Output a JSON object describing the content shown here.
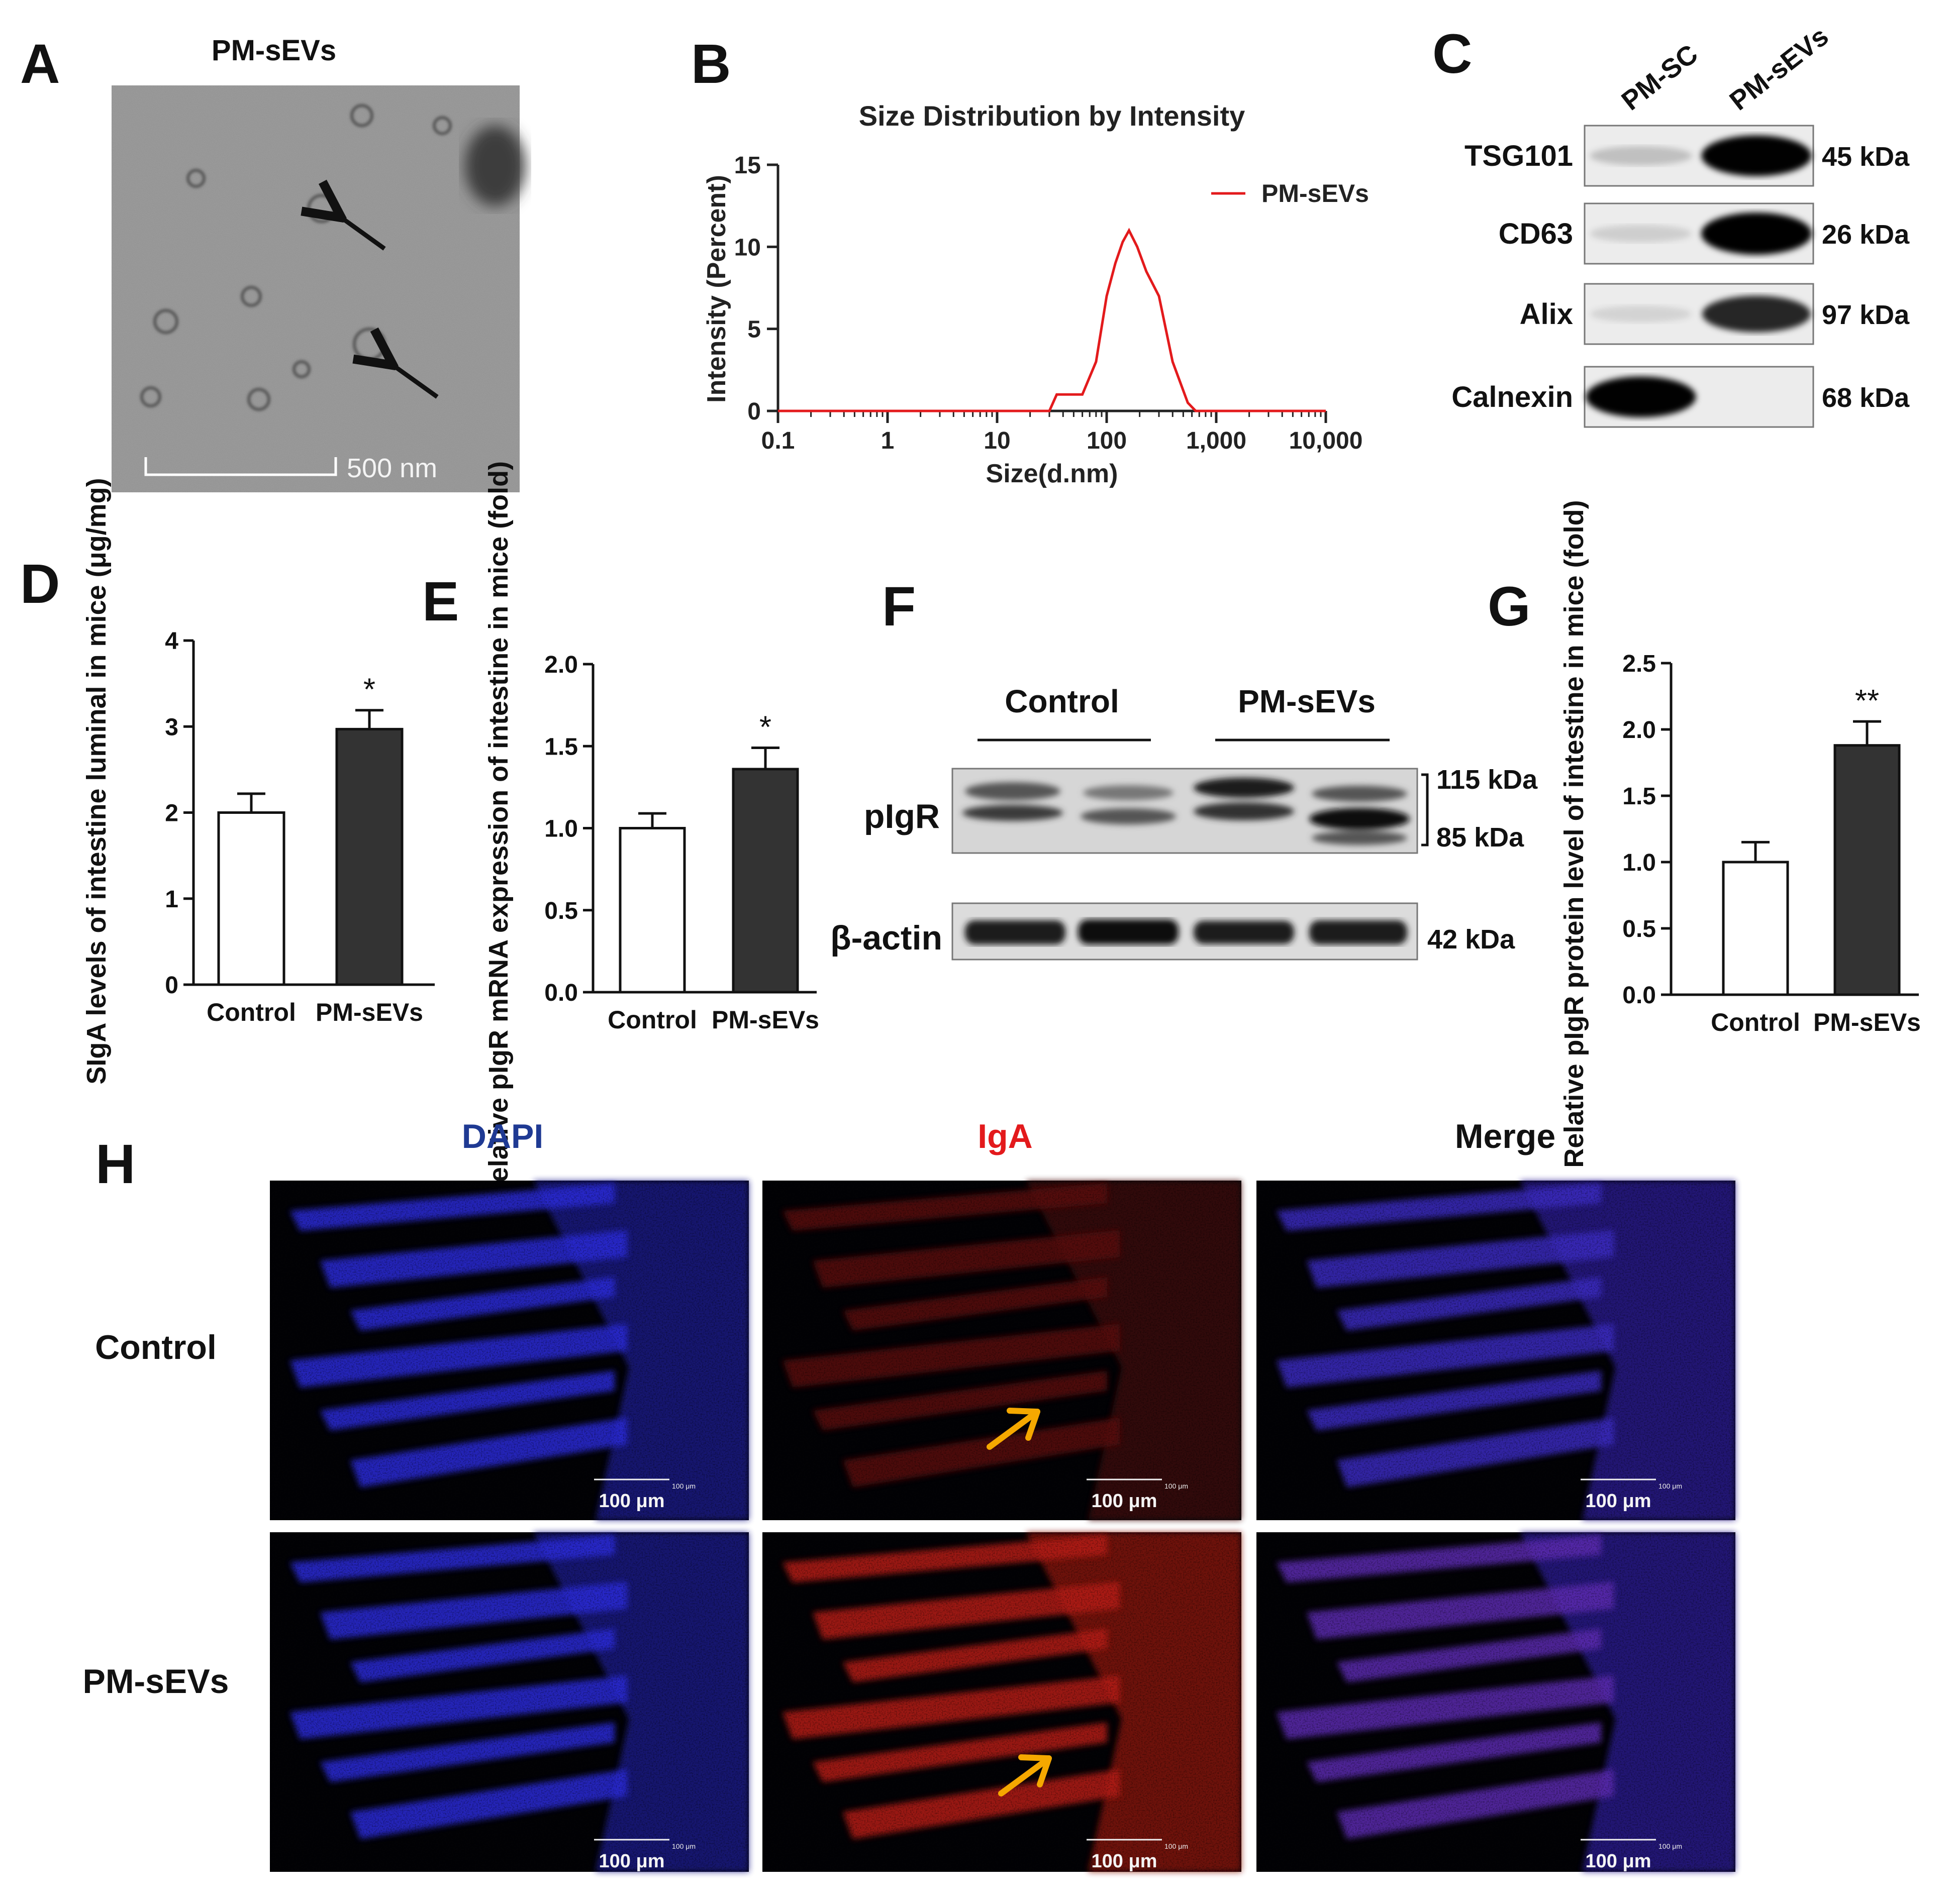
{
  "panel_letters": [
    "A",
    "B",
    "C",
    "D",
    "E",
    "F",
    "G",
    "H"
  ],
  "panelA": {
    "title": "PM-sEVs",
    "scale_label": "500 nm"
  },
  "panelB": {
    "chart_data": {
      "type": "line",
      "title": "Size Distribution by Intensity",
      "xlabel": "Size(d.nm)",
      "ylabel": "Intensity (Percent)",
      "xscale": "log",
      "xlim": [
        0.1,
        10000
      ],
      "ylim": [
        0,
        15
      ],
      "xticks": [
        0.1,
        1,
        10,
        100,
        1000,
        10000
      ],
      "xtick_labels": [
        "0.1",
        "1",
        "10",
        "100",
        "1,000",
        "10,000"
      ],
      "yticks": [
        0,
        5,
        10,
        15
      ],
      "ytick_labels": [
        "0",
        "5",
        "10",
        "15"
      ],
      "legend_position": "top-right",
      "series": [
        {
          "name": "PM-sEVs",
          "color": "#e31a1c",
          "x": [
            0.1,
            30,
            35,
            60,
            80,
            100,
            120,
            140,
            160,
            190,
            230,
            300,
            400,
            550,
            650,
            10000
          ],
          "y": [
            0,
            0,
            1,
            1,
            3,
            7,
            9,
            10.3,
            11,
            10,
            8.5,
            7,
            3,
            0.5,
            0,
            0
          ]
        }
      ]
    }
  },
  "panelC": {
    "lanes": [
      "PM-SC",
      "PM-sEVs"
    ],
    "rows": [
      {
        "label": "TSG101",
        "kda": "45 kDa",
        "left": 0.18,
        "right": 0.95
      },
      {
        "label": "CD63",
        "kda": "26 kDa",
        "left": 0.12,
        "right": 1.0
      },
      {
        "label": "Alix",
        "kda": "97 kDa",
        "left": 0.1,
        "right": 0.8
      },
      {
        "label": "Calnexin",
        "kda": "68 kDa",
        "left": 0.95,
        "right": 0.0
      }
    ]
  },
  "panelD": {
    "chart_data": {
      "type": "bar",
      "categories": [
        "Control",
        "PM-sEVs"
      ],
      "values": [
        2.0,
        2.97
      ],
      "errors": [
        0.22,
        0.22
      ],
      "significance": [
        "",
        "*"
      ],
      "ylabel": "SIgA levels of intestine luminal in mice (μg/mg)",
      "ylim": [
        0,
        4
      ],
      "yticks": [
        0,
        1,
        2,
        3,
        4
      ],
      "ytick_labels": [
        "0",
        "1",
        "2",
        "3",
        "4"
      ],
      "bar_colors": [
        "#ffffff",
        "#333333"
      ]
    }
  },
  "panelE": {
    "chart_data": {
      "type": "bar",
      "categories": [
        "Control",
        "PM-sEVs"
      ],
      "values": [
        1.0,
        1.36
      ],
      "errors": [
        0.09,
        0.13
      ],
      "significance": [
        "",
        "*"
      ],
      "ylabel": "Relative pIgR mRNA expression of intestine in mice (fold)",
      "ylim": [
        0,
        2.0
      ],
      "yticks": [
        0,
        0.5,
        1.0,
        1.5,
        2.0
      ],
      "ytick_labels": [
        "0.0",
        "0.5",
        "1.0",
        "1.5",
        "2.0"
      ],
      "bar_colors": [
        "#ffffff",
        "#333333"
      ]
    }
  },
  "panelF": {
    "groups": [
      "Control",
      "PM-sEVs"
    ],
    "row_labels": [
      "pIgR",
      "β-actin"
    ],
    "kda_labels": [
      "115 kDa",
      "85 kDa",
      "42 kDa"
    ]
  },
  "panelG": {
    "chart_data": {
      "type": "bar",
      "categories": [
        "Control",
        "PM-sEVs"
      ],
      "values": [
        1.0,
        1.88
      ],
      "errors": [
        0.15,
        0.18
      ],
      "significance": [
        "",
        "**"
      ],
      "ylabel": "Relative pIgR protein level of intestine in mice (fold)",
      "ylim": [
        0,
        2.5
      ],
      "yticks": [
        0,
        0.5,
        1.0,
        1.5,
        2.0,
        2.5
      ],
      "ytick_labels": [
        "0.0",
        "0.5",
        "1.0",
        "1.5",
        "2.0",
        "2.5"
      ],
      "bar_colors": [
        "#ffffff",
        "#333333"
      ]
    }
  },
  "panelH": {
    "columns": [
      {
        "label": "DAPI",
        "color": "#1f3a93"
      },
      {
        "label": "IgA",
        "color": "#e31a1c"
      },
      {
        "label": "Merge",
        "color": "#111111"
      }
    ],
    "rows": [
      "Control",
      "PM-sEVs"
    ],
    "scale_label": "100 μm",
    "scale_small_label": "100 μm",
    "arrow_color": "#f5a800"
  }
}
